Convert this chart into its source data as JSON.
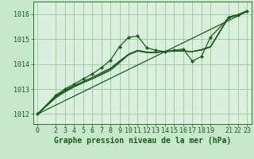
{
  "background_color": "#c8e8cc",
  "plot_bg_color": "#d8f0dc",
  "grid_color": "#98c89c",
  "line_color": "#1a5e1a",
  "title": "Graphe pression niveau de la mer (hPa)",
  "tick_fontsize": 6,
  "title_fontsize": 7,
  "xlim": [
    -0.5,
    23.5
  ],
  "ylim": [
    1011.6,
    1016.5
  ],
  "yticks": [
    1012,
    1013,
    1014,
    1015,
    1016
  ],
  "xticks": [
    0,
    2,
    3,
    4,
    5,
    6,
    7,
    8,
    9,
    10,
    11,
    12,
    13,
    14,
    15,
    16,
    17,
    18,
    19,
    21,
    22,
    23
  ],
  "straight_line_x": [
    0,
    23
  ],
  "straight_line_y": [
    1012.0,
    1016.1
  ],
  "main_x": [
    0,
    2,
    3,
    4,
    5,
    6,
    7,
    8,
    9,
    10,
    11,
    12,
    13,
    14,
    15,
    16,
    17,
    18,
    19,
    21,
    22,
    23
  ],
  "main_y": [
    1012.0,
    1012.75,
    1013.0,
    1013.2,
    1013.4,
    1013.6,
    1013.85,
    1014.15,
    1014.7,
    1015.07,
    1015.12,
    1014.65,
    1014.55,
    1014.5,
    1014.55,
    1014.6,
    1014.12,
    1014.3,
    1015.08,
    1015.85,
    1015.95,
    1016.12
  ],
  "line2_x": [
    0,
    2,
    3,
    4,
    5,
    6,
    7,
    8,
    9,
    10,
    11,
    12,
    13,
    14,
    15,
    16,
    17,
    18,
    19,
    21,
    22,
    23
  ],
  "line2_y": [
    1012.0,
    1012.7,
    1012.92,
    1013.1,
    1013.28,
    1013.45,
    1013.62,
    1013.8,
    1014.1,
    1014.4,
    1014.55,
    1014.48,
    1014.47,
    1014.5,
    1014.52,
    1014.52,
    1014.5,
    1014.58,
    1014.7,
    1015.87,
    1015.98,
    1016.12
  ],
  "line3_x": [
    0,
    2,
    3,
    4,
    5,
    6,
    7,
    8,
    9,
    10,
    11,
    12,
    13,
    14,
    15,
    16,
    17,
    18,
    19,
    21,
    22,
    23
  ],
  "line3_y": [
    1012.0,
    1012.65,
    1012.88,
    1013.08,
    1013.25,
    1013.4,
    1013.57,
    1013.75,
    1014.05,
    1014.37,
    1014.52,
    1014.46,
    1014.46,
    1014.5,
    1014.52,
    1014.52,
    1014.5,
    1014.56,
    1014.68,
    1015.88,
    1015.97,
    1016.12
  ],
  "line4_x": [
    0,
    2,
    3,
    4,
    5,
    6,
    7,
    8,
    9,
    10,
    11,
    12,
    13,
    14,
    15,
    16,
    17,
    18,
    19,
    21,
    22,
    23
  ],
  "line4_y": [
    1012.0,
    1012.72,
    1012.95,
    1013.14,
    1013.3,
    1013.46,
    1013.65,
    1013.83,
    1014.12,
    1014.38,
    1014.53,
    1014.47,
    1014.47,
    1014.5,
    1014.52,
    1014.52,
    1014.5,
    1014.57,
    1014.69,
    1015.88,
    1015.97,
    1016.12
  ]
}
